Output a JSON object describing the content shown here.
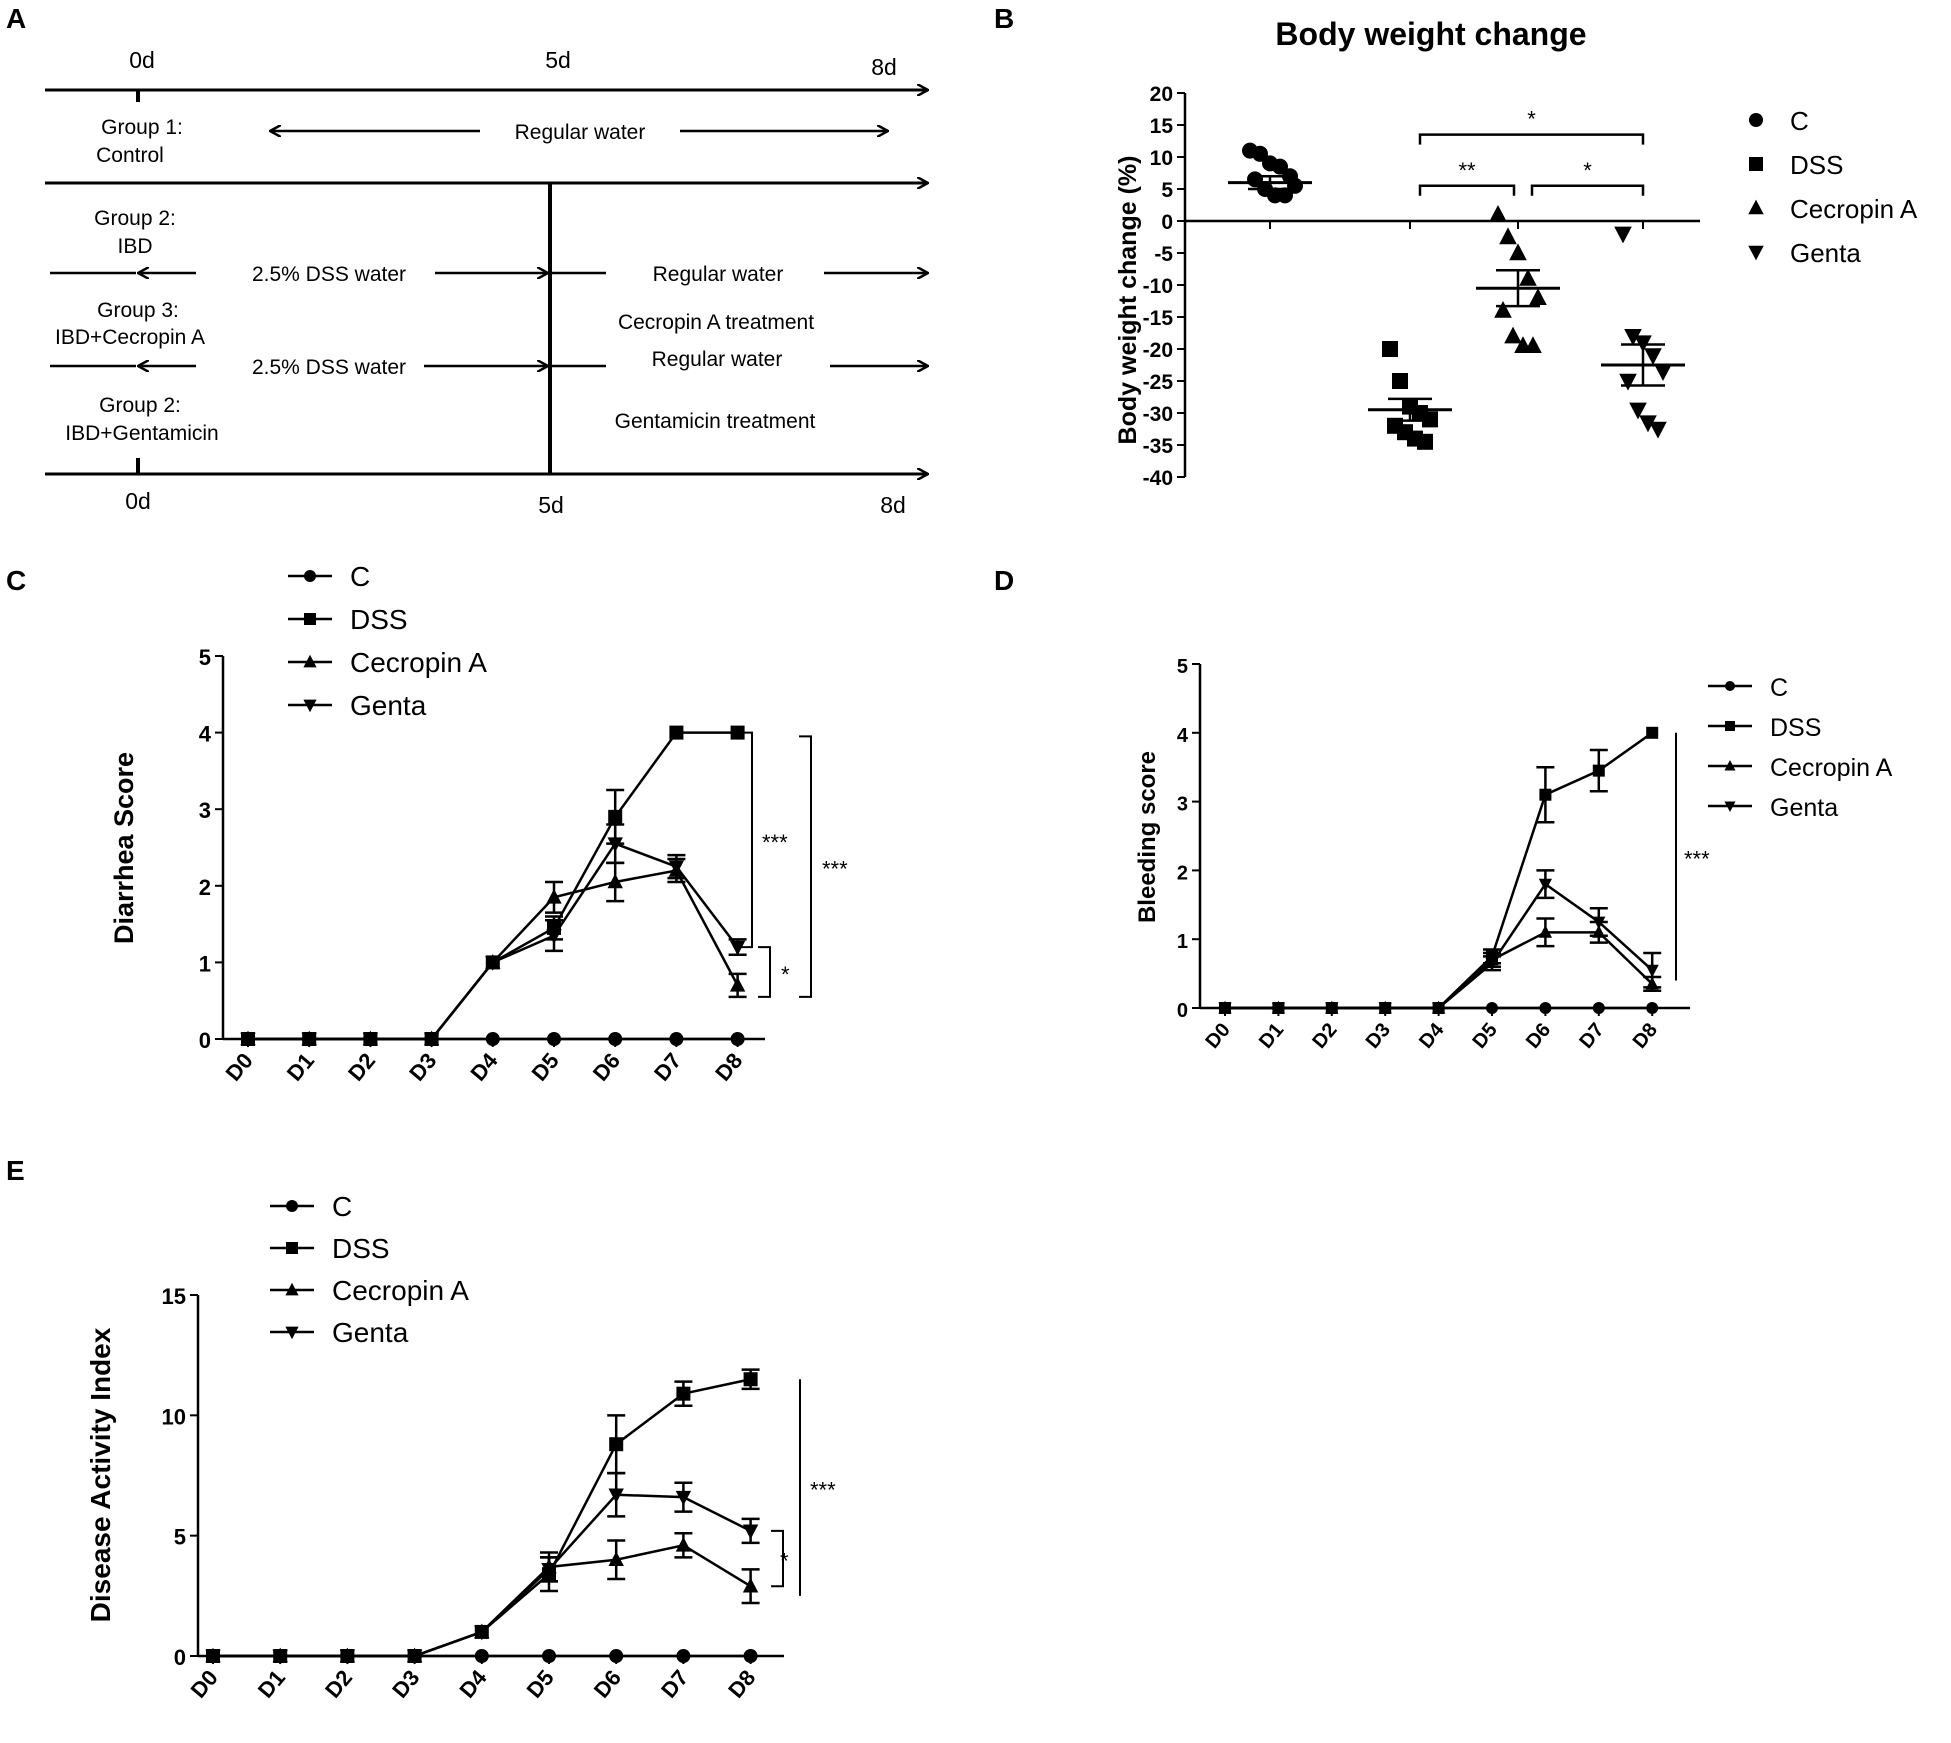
{
  "figure": {
    "panels": [
      {
        "letter": "A"
      },
      {
        "letter": "B"
      },
      {
        "letter": "C"
      },
      {
        "letter": "D"
      },
      {
        "letter": "E"
      }
    ]
  },
  "schematic": {
    "top_ticks": [
      "0d",
      "5d",
      "8d"
    ],
    "bottom_ticks": [
      "0d",
      "5d",
      "8d"
    ],
    "groups": [
      {
        "label": "Group 1:",
        "desc": "Control"
      },
      {
        "label": "Group 2:",
        "desc": "IBD"
      },
      {
        "label": "Group 3:",
        "desc": "IBD+Cecropin A"
      },
      {
        "label": "Group 2:",
        "desc": "IBD+Gentamicin"
      }
    ],
    "regular_water": "Regular water",
    "dss_water": "2.5% DSS water",
    "cecropin_treatment": "Cecropin A treatment",
    "gentamicin_treatment": "Gentamicin treatment"
  },
  "chart_data": [
    {
      "id": "B",
      "type": "scatter",
      "title": "Body weight change",
      "ylabel": "Body weight change (%)",
      "ylim": [
        -40,
        20
      ],
      "yticks": [
        20,
        15,
        10,
        5,
        0,
        -5,
        -10,
        -15,
        -20,
        -25,
        -30,
        -35,
        -40
      ],
      "legend": [
        "C",
        "DSS",
        "Cecropin A",
        "Genta"
      ],
      "groups": [
        {
          "name": "C",
          "marker": "circle",
          "values": [
            11,
            10.5,
            9,
            8.5,
            7,
            6.5,
            5,
            4,
            4,
            5.5
          ],
          "mean": 6,
          "sem": 1
        },
        {
          "name": "DSS",
          "marker": "square",
          "values": [
            -20,
            -25,
            -29,
            -30,
            -31,
            -32,
            -33,
            -34,
            -34.5
          ],
          "mean": -29.5,
          "sem": 1.7
        },
        {
          "name": "Cecropin A",
          "marker": "triangle-up",
          "values": [
            1,
            -2.5,
            -5,
            -9,
            -12,
            -14,
            -18,
            -19.5,
            -19.5
          ],
          "mean": -10.5,
          "sem": 2.8
        },
        {
          "name": "Genta",
          "marker": "triangle-down",
          "values": [
            -2,
            -18,
            -19,
            -21,
            -23.5,
            -25,
            -29.5,
            -31.5,
            -32.5
          ],
          "mean": -22.5,
          "sem": 3.2
        }
      ],
      "significance": [
        {
          "from": "DSS",
          "to": "Cecropin A",
          "label": "**",
          "y": 5.5
        },
        {
          "from": "Cecropin A",
          "to": "Genta",
          "label": "*",
          "y": 5.5
        },
        {
          "from": "DSS",
          "to": "Genta",
          "label": "*",
          "y": 13.5
        }
      ]
    },
    {
      "id": "C",
      "type": "line",
      "ylabel": "Diarrhea Score",
      "categories": [
        "D0",
        "D1",
        "D2",
        "D3",
        "D4",
        "D5",
        "D6",
        "D7",
        "D8"
      ],
      "ylim": [
        0,
        5
      ],
      "yticks": [
        0,
        1,
        2,
        3,
        4,
        5
      ],
      "series": [
        {
          "name": "C",
          "marker": "circle",
          "values": [
            0,
            0,
            0,
            0,
            0,
            0,
            0,
            0,
            0
          ],
          "err": [
            0,
            0,
            0,
            0,
            0,
            0,
            0,
            0,
            0
          ]
        },
        {
          "name": "DSS",
          "marker": "square",
          "values": [
            0,
            0,
            0,
            0,
            1,
            1.45,
            2.9,
            4,
            4
          ],
          "err": [
            0,
            0,
            0,
            0,
            0,
            0.15,
            0.35,
            0,
            0
          ]
        },
        {
          "name": "Cecropin A",
          "marker": "triangle-up",
          "values": [
            0,
            0,
            0,
            0,
            1,
            1.85,
            2.05,
            2.2,
            0.7
          ],
          "err": [
            0,
            0,
            0,
            0,
            0,
            0.2,
            0.25,
            0.15,
            0.15
          ]
        },
        {
          "name": "Genta",
          "marker": "triangle-down",
          "values": [
            0,
            0,
            0,
            0,
            1,
            1.35,
            2.55,
            2.25,
            1.2
          ],
          "err": [
            0,
            0,
            0,
            0,
            0,
            0.2,
            0.25,
            0.15,
            0.1
          ]
        }
      ],
      "brackets": [
        {
          "label": "***",
          "y_from": 4,
          "y_to": 1.2
        },
        {
          "label": "*",
          "y_from": 1.2,
          "y_to": 0.55
        },
        {
          "label": "***",
          "y_from": 3.95,
          "y_to": 0.55
        }
      ]
    },
    {
      "id": "D",
      "type": "line",
      "ylabel": "Bleeding score",
      "categories": [
        "D0",
        "D1",
        "D2",
        "D3",
        "D4",
        "D5",
        "D6",
        "D7",
        "D8"
      ],
      "ylim": [
        0,
        5
      ],
      "yticks": [
        0,
        1,
        2,
        3,
        4,
        5
      ],
      "series": [
        {
          "name": "C",
          "marker": "circle",
          "values": [
            0,
            0,
            0,
            0,
            0,
            0,
            0,
            0,
            0
          ],
          "err": [
            0,
            0,
            0,
            0,
            0,
            0,
            0,
            0,
            0
          ]
        },
        {
          "name": "DSS",
          "marker": "square",
          "values": [
            0,
            0,
            0,
            0,
            0,
            0.75,
            3.1,
            3.45,
            4
          ],
          "err": [
            0,
            0,
            0,
            0,
            0,
            0.1,
            0.4,
            0.3,
            0
          ]
        },
        {
          "name": "Cecropin A",
          "marker": "triangle-up",
          "values": [
            0,
            0,
            0,
            0,
            0,
            0.7,
            1.1,
            1.1,
            0.35
          ],
          "err": [
            0,
            0,
            0,
            0,
            0,
            0.1,
            0.2,
            0.15,
            0.1
          ]
        },
        {
          "name": "Genta",
          "marker": "triangle-down",
          "values": [
            0,
            0,
            0,
            0,
            0,
            0.65,
            1.8,
            1.25,
            0.55
          ],
          "err": [
            0,
            0,
            0,
            0,
            0,
            0.1,
            0.2,
            0.2,
            0.25
          ]
        }
      ],
      "brackets": [
        {
          "label": "***",
          "y_from": 4,
          "y_to": 0.4,
          "type": "line"
        }
      ]
    },
    {
      "id": "E",
      "type": "line",
      "ylabel": "Disease Activity Index",
      "categories": [
        "D0",
        "D1",
        "D2",
        "D3",
        "D4",
        "D5",
        "D6",
        "D7",
        "D8"
      ],
      "ylim": [
        0,
        15
      ],
      "yticks": [
        0,
        5,
        10,
        15
      ],
      "series": [
        {
          "name": "C",
          "marker": "circle",
          "values": [
            0,
            0,
            0,
            0,
            0,
            0,
            0,
            0,
            0
          ],
          "err": [
            0,
            0,
            0,
            0,
            0,
            0,
            0,
            0,
            0
          ]
        },
        {
          "name": "DSS",
          "marker": "square",
          "values": [
            0,
            0,
            0,
            0,
            1,
            3.4,
            8.8,
            10.9,
            11.5
          ],
          "err": [
            0,
            0,
            0,
            0,
            0,
            0.7,
            1.2,
            0.5,
            0.4
          ]
        },
        {
          "name": "Cecropin A",
          "marker": "triangle-up",
          "values": [
            0,
            0,
            0,
            0,
            1,
            3.7,
            4,
            4.6,
            2.9
          ],
          "err": [
            0,
            0,
            0,
            0,
            0,
            0.6,
            0.8,
            0.5,
            0.7
          ]
        },
        {
          "name": "Genta",
          "marker": "triangle-down",
          "values": [
            0,
            0,
            0,
            0,
            1,
            3.6,
            6.7,
            6.6,
            5.2
          ],
          "err": [
            0,
            0,
            0,
            0,
            0,
            0.5,
            0.9,
            0.6,
            0.5
          ]
        }
      ],
      "brackets": [
        {
          "label": "***",
          "y_from": 11.5,
          "y_to": 2.5,
          "type": "line"
        },
        {
          "label": "*",
          "y_from": 5.2,
          "y_to": 2.9
        }
      ]
    }
  ]
}
